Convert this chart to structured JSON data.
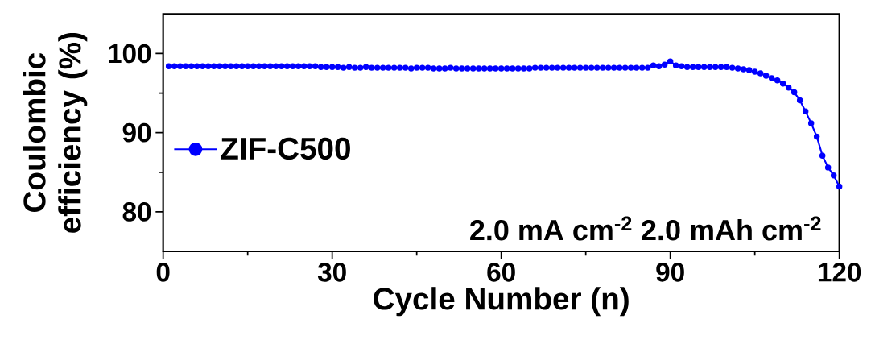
{
  "chart_data": {
    "type": "line",
    "xlabel": "Cycle Number (n)",
    "ylabel": "Coulombic efficiency (%)",
    "xlim": [
      0,
      120
    ],
    "ylim": [
      75,
      105
    ],
    "xticks": [
      0,
      30,
      60,
      90,
      120
    ],
    "yticks": [
      80,
      90,
      100
    ],
    "grid": false,
    "legend": "left",
    "marker": "circle",
    "line_style": "solid",
    "annotations": [
      "2.0 mA cm$^{-2}$ 2.0 mAh cm$^{-2}$"
    ],
    "series": [
      {
        "name": "ZIF-C500",
        "color": "#0000ff",
        "x": [
          1,
          2,
          3,
          4,
          5,
          6,
          7,
          8,
          9,
          10,
          11,
          12,
          13,
          14,
          15,
          16,
          17,
          18,
          19,
          20,
          21,
          22,
          23,
          24,
          25,
          26,
          27,
          28,
          29,
          30,
          31,
          32,
          33,
          34,
          35,
          36,
          37,
          38,
          39,
          40,
          41,
          42,
          43,
          44,
          45,
          46,
          47,
          48,
          49,
          50,
          51,
          52,
          53,
          54,
          55,
          56,
          57,
          58,
          59,
          60,
          61,
          62,
          63,
          64,
          65,
          66,
          67,
          68,
          69,
          70,
          71,
          72,
          73,
          74,
          75,
          76,
          77,
          78,
          79,
          80,
          81,
          82,
          83,
          84,
          85,
          86,
          87,
          88,
          89,
          90,
          91,
          92,
          93,
          94,
          95,
          96,
          97,
          98,
          99,
          100,
          101,
          102,
          103,
          104,
          105,
          106,
          107,
          108,
          109,
          110,
          111,
          112,
          113,
          114,
          115,
          116,
          117,
          118,
          119,
          120
        ],
        "values": [
          98.4,
          98.4,
          98.4,
          98.4,
          98.4,
          98.4,
          98.4,
          98.4,
          98.4,
          98.4,
          98.4,
          98.4,
          98.4,
          98.4,
          98.4,
          98.4,
          98.4,
          98.4,
          98.4,
          98.4,
          98.4,
          98.4,
          98.4,
          98.4,
          98.4,
          98.4,
          98.4,
          98.3,
          98.3,
          98.3,
          98.3,
          98.2,
          98.3,
          98.2,
          98.2,
          98.3,
          98.2,
          98.2,
          98.2,
          98.2,
          98.2,
          98.2,
          98.2,
          98.1,
          98.2,
          98.2,
          98.2,
          98.1,
          98.1,
          98.1,
          98.2,
          98.1,
          98.1,
          98.1,
          98.1,
          98.1,
          98.1,
          98.1,
          98.1,
          98.1,
          98.1,
          98.1,
          98.1,
          98.1,
          98.1,
          98.2,
          98.2,
          98.2,
          98.2,
          98.2,
          98.2,
          98.2,
          98.2,
          98.2,
          98.2,
          98.2,
          98.2,
          98.2,
          98.2,
          98.2,
          98.2,
          98.2,
          98.2,
          98.2,
          98.2,
          98.2,
          98.5,
          98.4,
          98.6,
          99.0,
          98.5,
          98.4,
          98.3,
          98.3,
          98.3,
          98.3,
          98.3,
          98.3,
          98.3,
          98.3,
          98.2,
          98.1,
          98.0,
          97.9,
          97.7,
          97.5,
          97.2,
          96.9,
          96.6,
          96.2,
          95.7,
          95.1,
          94.1,
          92.7,
          91.2,
          89.5,
          87.1,
          85.6,
          84.6,
          83.2
        ]
      }
    ]
  }
}
